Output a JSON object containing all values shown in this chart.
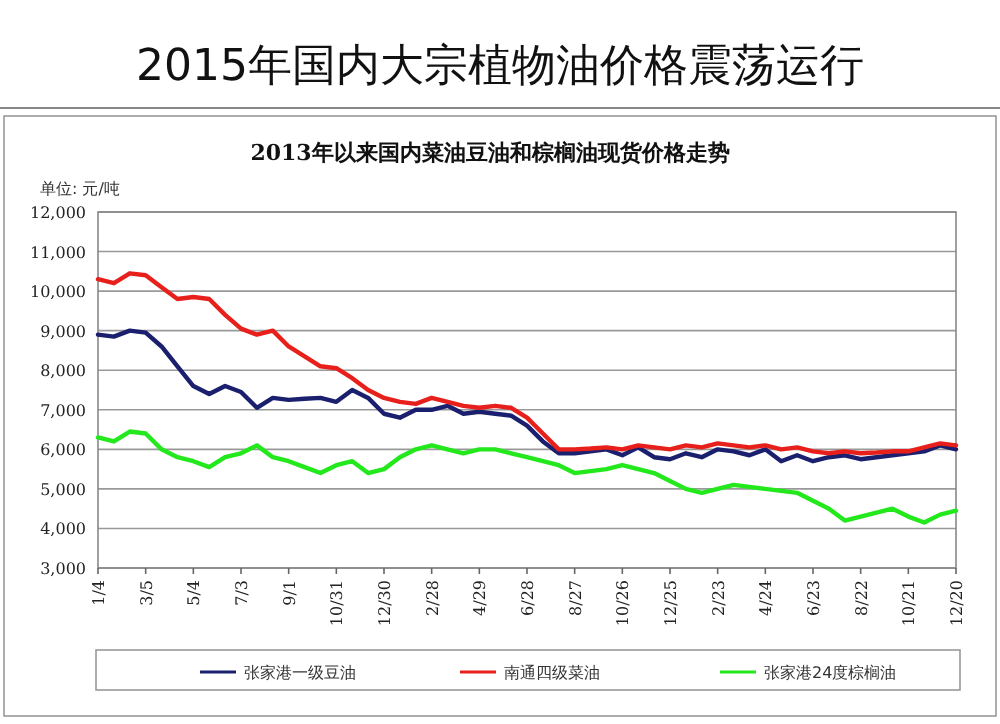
{
  "chart_data": {
    "type": "line",
    "title": "2015年国内大宗植物油价格震荡运行",
    "subtitle": "2013年以来国内菜油豆油和棕榈油现货价格走势",
    "ylabel": "单位: 元/吨",
    "categories": [
      "1/4",
      null,
      null,
      "3/5",
      null,
      null,
      "5/4",
      null,
      null,
      "7/3",
      null,
      null,
      "9/1",
      null,
      null,
      "10/31",
      null,
      null,
      "12/30",
      null,
      null,
      "2/28",
      null,
      null,
      "4/29",
      null,
      null,
      "6/28",
      null,
      null,
      "8/27",
      null,
      null,
      "10/26",
      null,
      null,
      "12/25",
      null,
      null,
      "2/23",
      null,
      null,
      "4/24",
      null,
      null,
      "6/23",
      null,
      null,
      "8/22",
      null,
      null,
      "10/21",
      null,
      null,
      "12/20"
    ],
    "series": [
      {
        "name": "张家港一级豆油",
        "color": "#1a1f6e",
        "values": [
          8900,
          8850,
          9000,
          8950,
          8600,
          8100,
          7600,
          7400,
          7600,
          7450,
          7050,
          7300,
          7250,
          7280,
          7300,
          7200,
          7500,
          7300,
          6900,
          6800,
          7000,
          7000,
          7100,
          6900,
          6950,
          6900,
          6850,
          6600,
          6200,
          5900,
          5900,
          5950,
          6000,
          5850,
          6050,
          5800,
          5750,
          5900,
          5800,
          6000,
          5950,
          5850,
          6000,
          5700,
          5850,
          5700,
          5800,
          5850,
          5750,
          5800,
          5850,
          5900,
          5950,
          6100,
          6000
        ]
      },
      {
        "name": "南通四级菜油",
        "color": "#e8201c",
        "values": [
          10300,
          10200,
          10450,
          10400,
          10100,
          9800,
          9850,
          9800,
          9400,
          9050,
          8900,
          9000,
          8600,
          8350,
          8100,
          8050,
          7800,
          7500,
          7300,
          7200,
          7150,
          7300,
          7200,
          7100,
          7050,
          7100,
          7050,
          6800,
          6400,
          6000,
          6000,
          6020,
          6050,
          6000,
          6100,
          6050,
          6000,
          6100,
          6050,
          6150,
          6100,
          6050,
          6100,
          6000,
          6050,
          5950,
          5900,
          5950,
          5900,
          5920,
          5950,
          5950,
          6050,
          6150,
          6100
        ]
      },
      {
        "name": "张家港24度棕榈油",
        "color": "#22e81c",
        "values": [
          6300,
          6200,
          6450,
          6400,
          6000,
          5800,
          5700,
          5550,
          5800,
          5900,
          6100,
          5800,
          5700,
          5550,
          5400,
          5600,
          5700,
          5400,
          5500,
          5800,
          6000,
          6100,
          6000,
          5900,
          6000,
          6000,
          5900,
          5800,
          5700,
          5600,
          5400,
          5450,
          5500,
          5600,
          5500,
          5400,
          5200,
          5000,
          4900,
          5000,
          5100,
          5050,
          5000,
          4950,
          4900,
          4700,
          4500,
          4200,
          4300,
          4400,
          4500,
          4300,
          4150,
          4350,
          4450
        ]
      }
    ],
    "ylim": [
      3000,
      12000
    ],
    "yticks": [
      {
        "value": 3000,
        "label": "3,000"
      },
      {
        "value": 4000,
        "label": "4,000"
      },
      {
        "value": 5000,
        "label": "5,000"
      },
      {
        "value": 6000,
        "label": "6,000"
      },
      {
        "value": 7000,
        "label": "7,000"
      },
      {
        "value": 8000,
        "label": "8,000"
      },
      {
        "value": 9000,
        "label": "9,000"
      },
      {
        "value": 10000,
        "label": "10,000"
      },
      {
        "value": 11000,
        "label": "11,000"
      },
      {
        "value": 12000,
        "label": "12,000"
      }
    ],
    "grid": "y",
    "legend": "bottom",
    "marker": "none",
    "line_style": "solid"
  }
}
